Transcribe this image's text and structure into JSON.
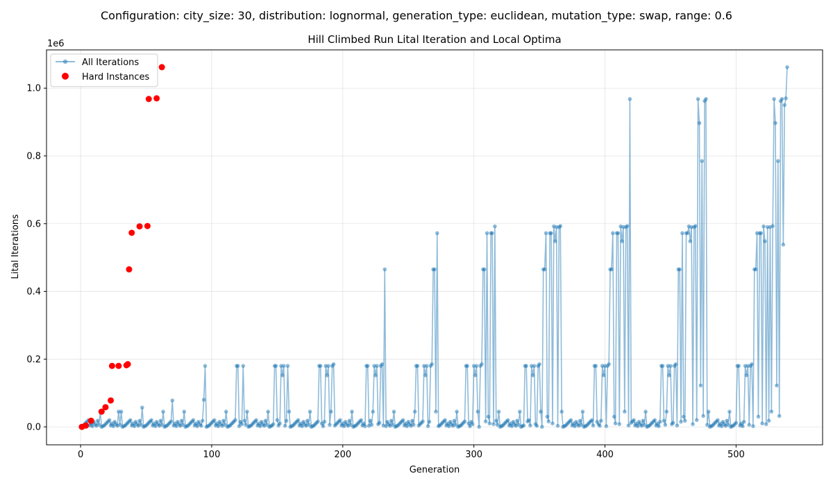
{
  "suptitle": "Configuration: city_size: 30, distribution: lognormal, generation_type: euclidean, mutation_type: swap, range: 0.6",
  "colors": {
    "line": "#1f77b4",
    "hard": "#ff0000",
    "grid": "#b0b0b0",
    "axes": "#000000"
  },
  "chart_data": {
    "type": "scatter",
    "title": "Hill Climbed Run Lital Iteration and Local Optima",
    "xlabel": "Generation",
    "ylabel": "Lital Iterations",
    "y_offset_label": "1e6",
    "xlim": [
      -26,
      566
    ],
    "ylim": [
      -0.053,
      1.113
    ],
    "xticks": [
      0,
      100,
      200,
      300,
      400,
      500
    ],
    "yticks": [
      0.0,
      0.2,
      0.4,
      0.6,
      0.8,
      1.0
    ],
    "xtick_labels": [
      "0",
      "100",
      "200",
      "300",
      "400",
      "500"
    ],
    "ytick_labels": [
      "0.0",
      "0.2",
      "0.4",
      "0.6",
      "0.8",
      "1.0"
    ],
    "grid": true,
    "legend_position": "upper-left",
    "series": [
      {
        "name": "All Iterations",
        "style": "line-marker",
        "pattern": {
          "n": 540,
          "base": [
            0,
            0.002,
            0.004,
            0.008,
            0.012,
            0.016,
            0.02,
            0.004,
            0.01,
            0.002,
            0.015,
            0.008,
            0.003,
            0.018,
            0.006,
            0.045
          ],
          "spikes": [
            {
              "at": 29,
              "v": 0.045
            },
            {
              "at": 47,
              "v": 0.057
            },
            {
              "at": 70,
              "v": 0.078
            },
            {
              "at": 94,
              "v": 0.08
            },
            {
              "at": 95,
              "v": 0.18
            },
            {
              "at": 119,
              "v": 0.18
            },
            {
              "at": 120,
              "v": 0.18
            },
            {
              "at": 124,
              "v": 0.18
            },
            {
              "at": 148,
              "v": 0.18
            },
            {
              "at": 149,
              "v": 0.18
            },
            {
              "at": 153,
              "v": 0.18
            },
            {
              "at": 154,
              "v": 0.152
            },
            {
              "at": 155,
              "v": 0.18
            },
            {
              "at": 158,
              "v": 0.18
            },
            {
              "at": 182,
              "v": 0.18
            },
            {
              "at": 183,
              "v": 0.18
            },
            {
              "at": 187,
              "v": 0.18
            },
            {
              "at": 188,
              "v": 0.152
            },
            {
              "at": 189,
              "v": 0.18
            },
            {
              "at": 192,
              "v": 0.18
            },
            {
              "at": 193,
              "v": 0.185
            },
            {
              "at": 218,
              "v": 0.18
            },
            {
              "at": 219,
              "v": 0.18
            },
            {
              "at": 224,
              "v": 0.18
            },
            {
              "at": 225,
              "v": 0.152
            },
            {
              "at": 226,
              "v": 0.18
            },
            {
              "at": 229,
              "v": 0.18
            },
            {
              "at": 230,
              "v": 0.185
            },
            {
              "at": 232,
              "v": 0.465
            },
            {
              "at": 256,
              "v": 0.18
            },
            {
              "at": 257,
              "v": 0.18
            },
            {
              "at": 262,
              "v": 0.18
            },
            {
              "at": 263,
              "v": 0.152
            },
            {
              "at": 264,
              "v": 0.18
            },
            {
              "at": 267,
              "v": 0.18
            },
            {
              "at": 268,
              "v": 0.185
            },
            {
              "at": 269,
              "v": 0.465
            },
            {
              "at": 270,
              "v": 0.465
            },
            {
              "at": 272,
              "v": 0.572
            },
            {
              "at": 294,
              "v": 0.18
            },
            {
              "at": 295,
              "v": 0.18
            },
            {
              "at": 300,
              "v": 0.18
            },
            {
              "at": 301,
              "v": 0.152
            },
            {
              "at": 302,
              "v": 0.18
            },
            {
              "at": 305,
              "v": 0.18
            },
            {
              "at": 306,
              "v": 0.185
            },
            {
              "at": 307,
              "v": 0.465
            },
            {
              "at": 308,
              "v": 0.465
            },
            {
              "at": 310,
              "v": 0.572
            },
            {
              "at": 311,
              "v": 0.03
            },
            {
              "at": 313,
              "v": 0.572
            },
            {
              "at": 314,
              "v": 0.572
            },
            {
              "at": 316,
              "v": 0.592
            },
            {
              "at": 339,
              "v": 0.18
            },
            {
              "at": 340,
              "v": 0.18
            },
            {
              "at": 344,
              "v": 0.18
            },
            {
              "at": 345,
              "v": 0.152
            },
            {
              "at": 346,
              "v": 0.18
            },
            {
              "at": 349,
              "v": 0.18
            },
            {
              "at": 350,
              "v": 0.185
            },
            {
              "at": 353,
              "v": 0.465
            },
            {
              "at": 354,
              "v": 0.465
            },
            {
              "at": 355,
              "v": 0.572
            },
            {
              "at": 356,
              "v": 0.03
            },
            {
              "at": 358,
              "v": 0.572
            },
            {
              "at": 359,
              "v": 0.572
            },
            {
              "at": 361,
              "v": 0.592
            },
            {
              "at": 362,
              "v": 0.548
            },
            {
              "at": 363,
              "v": 0.59
            },
            {
              "at": 365,
              "v": 0.59
            },
            {
              "at": 366,
              "v": 0.593
            },
            {
              "at": 392,
              "v": 0.18
            },
            {
              "at": 393,
              "v": 0.18
            },
            {
              "at": 398,
              "v": 0.18
            },
            {
              "at": 399,
              "v": 0.152
            },
            {
              "at": 400,
              "v": 0.18
            },
            {
              "at": 402,
              "v": 0.18
            },
            {
              "at": 403,
              "v": 0.185
            },
            {
              "at": 404,
              "v": 0.465
            },
            {
              "at": 405,
              "v": 0.465
            },
            {
              "at": 406,
              "v": 0.572
            },
            {
              "at": 407,
              "v": 0.03
            },
            {
              "at": 409,
              "v": 0.572
            },
            {
              "at": 410,
              "v": 0.572
            },
            {
              "at": 412,
              "v": 0.592
            },
            {
              "at": 413,
              "v": 0.548
            },
            {
              "at": 414,
              "v": 0.59
            },
            {
              "at": 416,
              "v": 0.59
            },
            {
              "at": 417,
              "v": 0.593
            },
            {
              "at": 419,
              "v": 0.968
            },
            {
              "at": 443,
              "v": 0.18
            },
            {
              "at": 444,
              "v": 0.18
            },
            {
              "at": 448,
              "v": 0.18
            },
            {
              "at": 449,
              "v": 0.152
            },
            {
              "at": 450,
              "v": 0.18
            },
            {
              "at": 453,
              "v": 0.18
            },
            {
              "at": 454,
              "v": 0.185
            },
            {
              "at": 456,
              "v": 0.465
            },
            {
              "at": 457,
              "v": 0.465
            },
            {
              "at": 459,
              "v": 0.572
            },
            {
              "at": 460,
              "v": 0.03
            },
            {
              "at": 462,
              "v": 0.572
            },
            {
              "at": 463,
              "v": 0.572
            },
            {
              "at": 464,
              "v": 0.592
            },
            {
              "at": 465,
              "v": 0.548
            },
            {
              "at": 466,
              "v": 0.59
            },
            {
              "at": 468,
              "v": 0.59
            },
            {
              "at": 469,
              "v": 0.593
            },
            {
              "at": 471,
              "v": 0.968
            },
            {
              "at": 472,
              "v": 0.897
            },
            {
              "at": 473,
              "v": 0.122
            },
            {
              "at": 474,
              "v": 0.785
            },
            {
              "at": 475,
              "v": 0.032
            },
            {
              "at": 476,
              "v": 0.962
            },
            {
              "at": 477,
              "v": 0.968
            },
            {
              "at": 501,
              "v": 0.18
            },
            {
              "at": 502,
              "v": 0.18
            },
            {
              "at": 507,
              "v": 0.18
            },
            {
              "at": 508,
              "v": 0.152
            },
            {
              "at": 509,
              "v": 0.18
            },
            {
              "at": 511,
              "v": 0.18
            },
            {
              "at": 512,
              "v": 0.185
            },
            {
              "at": 514,
              "v": 0.465
            },
            {
              "at": 515,
              "v": 0.465
            },
            {
              "at": 516,
              "v": 0.572
            },
            {
              "at": 517,
              "v": 0.03
            },
            {
              "at": 518,
              "v": 0.572
            },
            {
              "at": 519,
              "v": 0.572
            },
            {
              "at": 521,
              "v": 0.592
            },
            {
              "at": 522,
              "v": 0.548
            },
            {
              "at": 524,
              "v": 0.59
            },
            {
              "at": 526,
              "v": 0.59
            },
            {
              "at": 528,
              "v": 0.593
            },
            {
              "at": 529,
              "v": 0.968
            },
            {
              "at": 530,
              "v": 0.897
            },
            {
              "at": 531,
              "v": 0.122
            },
            {
              "at": 532,
              "v": 0.785
            },
            {
              "at": 533,
              "v": 0.032
            },
            {
              "at": 534,
              "v": 0.962
            },
            {
              "at": 535,
              "v": 0.968
            },
            {
              "at": 536,
              "v": 0.538
            },
            {
              "at": 537,
              "v": 0.95
            },
            {
              "at": 538,
              "v": 0.97
            },
            {
              "at": 539,
              "v": 1.062
            }
          ]
        }
      },
      {
        "name": "Hard Instances",
        "style": "scatter",
        "x": [
          1,
          4,
          8,
          16,
          19,
          23,
          24,
          29,
          35,
          36,
          37,
          39,
          45,
          51,
          52,
          58,
          62
        ],
        "y": [
          0.0,
          0.004,
          0.018,
          0.045,
          0.058,
          0.078,
          0.18,
          0.18,
          0.182,
          0.185,
          0.465,
          0.573,
          0.592,
          0.593,
          0.968,
          0.97,
          1.062
        ]
      }
    ]
  }
}
